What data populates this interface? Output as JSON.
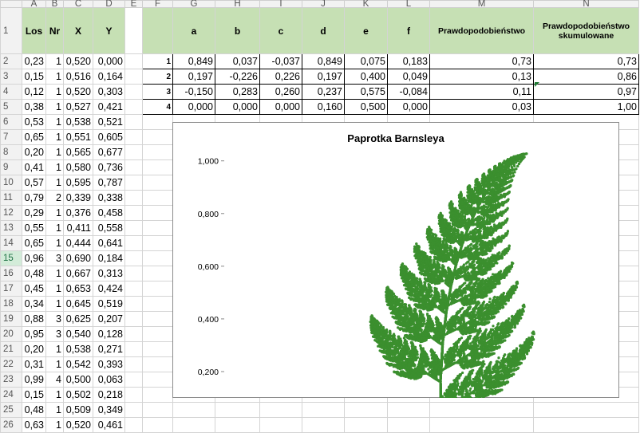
{
  "columns": [
    "A",
    "B",
    "C",
    "D",
    "E",
    "F",
    "G",
    "H",
    "I",
    "J",
    "K",
    "L",
    "M",
    "N"
  ],
  "row_numbers": [
    "1",
    "2",
    "3",
    "4",
    "5",
    "6",
    "7",
    "8",
    "9",
    "10",
    "11",
    "12",
    "13",
    "14",
    "15",
    "16",
    "17",
    "18",
    "19",
    "20",
    "21",
    "22",
    "23",
    "24",
    "25",
    "26"
  ],
  "active_row": "15",
  "left_headers": [
    "Los",
    "Nr",
    "X",
    "Y"
  ],
  "left_rows": [
    [
      "0,23",
      "1",
      "0,520",
      "0,000"
    ],
    [
      "0,15",
      "1",
      "0,516",
      "0,164"
    ],
    [
      "0,12",
      "1",
      "0,520",
      "0,303"
    ],
    [
      "0,38",
      "1",
      "0,527",
      "0,421"
    ],
    [
      "0,53",
      "1",
      "0,538",
      "0,521"
    ],
    [
      "0,65",
      "1",
      "0,551",
      "0,605"
    ],
    [
      "0,20",
      "1",
      "0,565",
      "0,677"
    ],
    [
      "0,41",
      "1",
      "0,580",
      "0,736"
    ],
    [
      "0,57",
      "1",
      "0,595",
      "0,787"
    ],
    [
      "0,79",
      "2",
      "0,339",
      "0,338"
    ],
    [
      "0,29",
      "1",
      "0,376",
      "0,458"
    ],
    [
      "0,55",
      "1",
      "0,411",
      "0,558"
    ],
    [
      "0,65",
      "1",
      "0,444",
      "0,641"
    ],
    [
      "0,96",
      "3",
      "0,690",
      "0,184"
    ],
    [
      "0,48",
      "1",
      "0,667",
      "0,313"
    ],
    [
      "0,45",
      "1",
      "0,653",
      "0,424"
    ],
    [
      "0,34",
      "1",
      "0,645",
      "0,519"
    ],
    [
      "0,88",
      "3",
      "0,625",
      "0,207"
    ],
    [
      "0,95",
      "3",
      "0,540",
      "0,128"
    ],
    [
      "0,20",
      "1",
      "0,538",
      "0,271"
    ],
    [
      "0,31",
      "1",
      "0,542",
      "0,393"
    ],
    [
      "0,99",
      "4",
      "0,500",
      "0,063"
    ],
    [
      "0,15",
      "1",
      "0,502",
      "0,218"
    ],
    [
      "0,48",
      "1",
      "0,509",
      "0,349"
    ],
    [
      "0,63",
      "1",
      "0,520",
      "0,461"
    ]
  ],
  "coef_headers": [
    "a",
    "b",
    "c",
    "d",
    "e",
    "f",
    "Prawdopodobieństwo",
    "Prawdopodobieństwo skumulowane"
  ],
  "coef_rows": [
    {
      "id": "1",
      "values": [
        "0,849",
        "0,037",
        "-0,037",
        "0,849",
        "0,075",
        "0,183",
        "0,73",
        "0,73"
      ]
    },
    {
      "id": "2",
      "values": [
        "0,197",
        "-0,226",
        "0,226",
        "0,197",
        "0,400",
        "0,049",
        "0,13",
        "0,86"
      ]
    },
    {
      "id": "3",
      "values": [
        "-0,150",
        "0,283",
        "0,260",
        "0,237",
        "0,575",
        "-0,084",
        "0,11",
        "0,97"
      ]
    },
    {
      "id": "4",
      "values": [
        "0,000",
        "0,000",
        "0,000",
        "0,160",
        "0,500",
        "0,000",
        "0,03",
        "1,00"
      ]
    }
  ],
  "chart_data": {
    "type": "scatter",
    "title": "Paprotka Barnsleya",
    "xlabel": "",
    "ylabel": "",
    "y_tick_labels": [
      "0,200",
      "0,400",
      "0,600",
      "0,800",
      "1,000"
    ],
    "ylim": [
      0.1,
      1.09
    ],
    "xlim": [
      -0.1,
      0.95
    ],
    "grid": false,
    "legend": "none",
    "series_color": "#3b8f2e",
    "point_count": 20000,
    "generator": "ifs",
    "ifs_transforms": [
      {
        "a": 0.849,
        "b": 0.037,
        "c": -0.037,
        "d": 0.849,
        "e": 0.075,
        "f": 0.183,
        "p": 0.73
      },
      {
        "a": 0.197,
        "b": -0.226,
        "c": 0.226,
        "d": 0.197,
        "e": 0.4,
        "f": 0.049,
        "p": 0.13
      },
      {
        "a": -0.15,
        "b": 0.283,
        "c": 0.26,
        "d": 0.237,
        "e": 0.575,
        "f": -0.084,
        "p": 0.11
      },
      {
        "a": 0.0,
        "b": 0.0,
        "c": 0.0,
        "d": 0.16,
        "e": 0.5,
        "f": 0.0,
        "p": 0.03
      }
    ]
  },
  "colors": {
    "header_fill": "#c6e0b4",
    "point_color": "#3b8f2e"
  }
}
